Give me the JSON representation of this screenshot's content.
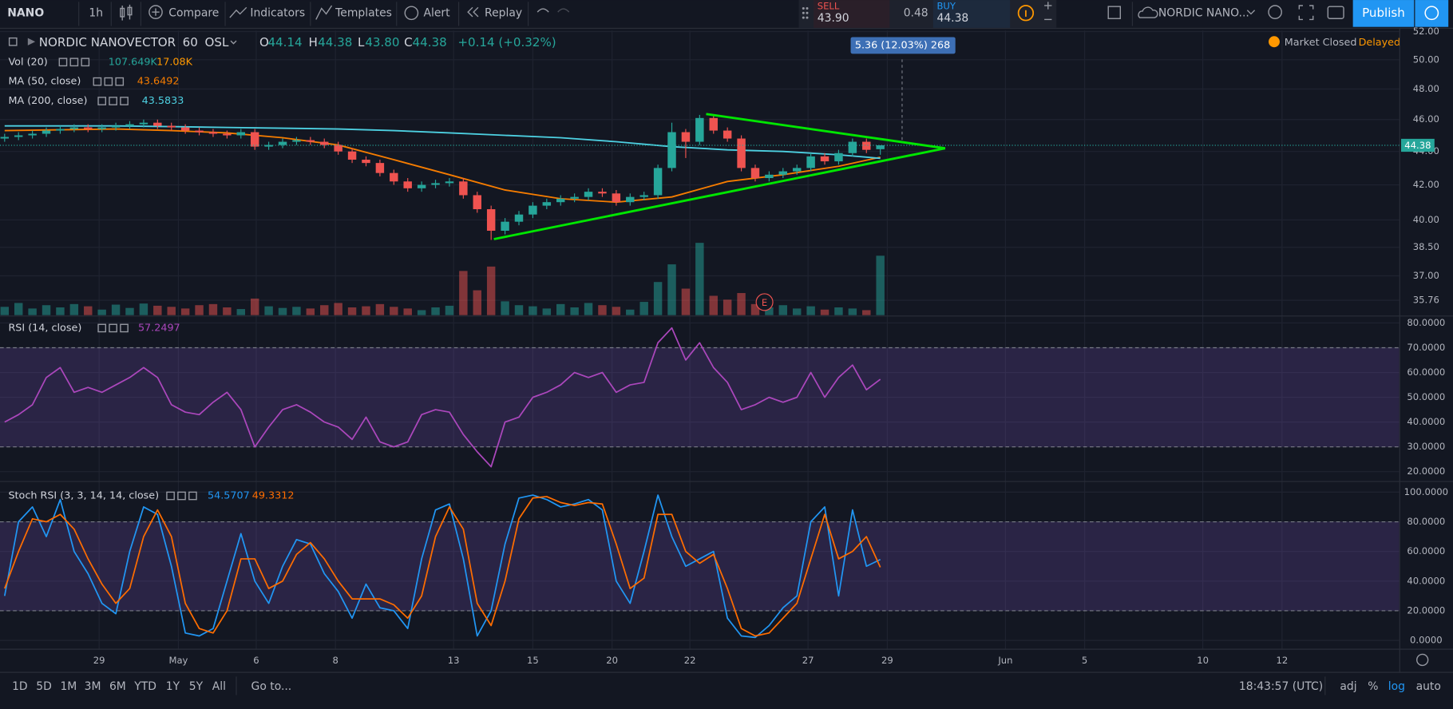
{
  "toolbar": {
    "symbol": "NANO",
    "interval": "1h",
    "compare": "Compare",
    "indicators": "Indicators",
    "templates": "Templates",
    "alert": "Alert",
    "replay": "Replay",
    "sell_label": "SELL",
    "sell_price": "43.90",
    "spread": "0.48",
    "buy_label": "BUY",
    "buy_price": "44.38",
    "layout_name": "NORDIC NANO...",
    "publish": "Publish"
  },
  "legend": {
    "symbol_name": "NORDIC NANOVECTOR",
    "interval": "60",
    "exchange": "OSL",
    "open_label": "O",
    "open": "44.14",
    "high_label": "H",
    "high": "44.38",
    "low_label": "L",
    "low": "43.80",
    "close_label": "C",
    "close": "44.38",
    "change": "+0.14 (+0.32%)"
  },
  "status": {
    "market": "Market Closed",
    "delayed": "Delayed"
  },
  "measure_label": "5.36 (12.03%) 268",
  "earnings_marker": "E",
  "bottom_bar": {
    "ranges": [
      "1D",
      "5D",
      "1M",
      "3M",
      "6M",
      "YTD",
      "1Y",
      "5Y",
      "All"
    ],
    "goto": "Go to...",
    "clock": "18:43:57 (UTC)",
    "adj": "adj",
    "percent": "%",
    "log": "log",
    "auto": "auto"
  },
  "chart_data": [
    {
      "type": "candlestick",
      "up_color": "#26a69a",
      "down_color": "#ef5350",
      "log_scale": true,
      "grid": true,
      "xlim": [
        -0.333,
        100.333
      ],
      "xticks": [
        {
          "value": 6.8,
          "label": "29"
        },
        {
          "value": 12.5,
          "label": "May"
        },
        {
          "value": 18.1,
          "label": "6"
        },
        {
          "value": 23.8,
          "label": "8"
        },
        {
          "value": 32.3,
          "label": "13"
        },
        {
          "value": 38,
          "label": "15"
        },
        {
          "value": 43.7,
          "label": "20"
        },
        {
          "value": 49.3,
          "label": "22"
        },
        {
          "value": 57.8,
          "label": "27"
        },
        {
          "value": 63.5,
          "label": "29"
        },
        {
          "value": 72,
          "label": "Jun"
        },
        {
          "value": 77.7,
          "label": "5"
        },
        {
          "value": 86.2,
          "label": "10"
        },
        {
          "value": 91.9,
          "label": "12"
        }
      ],
      "ylim": [
        35.03,
        52.07
      ],
      "yticks": [
        {
          "value": 52,
          "label": "52.00"
        },
        {
          "value": 50,
          "label": "50.00"
        },
        {
          "value": 48,
          "label": "48.00"
        },
        {
          "value": 46,
          "label": "46.00"
        },
        {
          "value": 44,
          "label": "44.00"
        },
        {
          "value": 42,
          "label": "42.00"
        },
        {
          "value": 40,
          "label": "40.00"
        },
        {
          "value": 38.5,
          "label": "38.50"
        },
        {
          "value": 37,
          "label": "37.00"
        },
        {
          "value": 35.76,
          "label": "35.76"
        }
      ],
      "candles": [
        [
          44.8,
          45.1,
          44.6,
          44.9
        ],
        [
          44.9,
          45.2,
          44.7,
          45.0
        ],
        [
          45.0,
          45.3,
          44.8,
          45.1
        ],
        [
          45.1,
          45.5,
          44.9,
          45.3
        ],
        [
          45.3,
          45.6,
          45.1,
          45.4
        ],
        [
          45.4,
          45.7,
          45.2,
          45.5
        ],
        [
          45.5,
          45.7,
          45.2,
          45.4
        ],
        [
          45.4,
          45.7,
          45.2,
          45.5
        ],
        [
          45.5,
          45.8,
          45.3,
          45.6
        ],
        [
          45.6,
          45.9,
          45.4,
          45.7
        ],
        [
          45.7,
          46.0,
          45.5,
          45.8
        ],
        [
          45.8,
          46.0,
          45.4,
          45.6
        ],
        [
          45.6,
          45.8,
          45.3,
          45.5
        ],
        [
          45.5,
          45.7,
          45.1,
          45.3
        ],
        [
          45.3,
          45.5,
          45.0,
          45.2
        ],
        [
          45.2,
          45.4,
          44.9,
          45.1
        ],
        [
          45.1,
          45.3,
          44.8,
          45.0
        ],
        [
          45.0,
          45.4,
          44.8,
          45.2
        ],
        [
          45.2,
          45.4,
          44.1,
          44.3
        ],
        [
          44.3,
          44.6,
          44.1,
          44.4
        ],
        [
          44.4,
          44.8,
          44.2,
          44.6
        ],
        [
          44.6,
          44.9,
          44.4,
          44.7
        ],
        [
          44.7,
          44.9,
          44.4,
          44.6
        ],
        [
          44.6,
          44.8,
          44.2,
          44.4
        ],
        [
          44.4,
          44.6,
          43.8,
          44.0
        ],
        [
          44.0,
          44.2,
          43.3,
          43.5
        ],
        [
          43.5,
          43.7,
          43.1,
          43.3
        ],
        [
          43.3,
          43.5,
          42.5,
          42.7
        ],
        [
          42.7,
          42.9,
          42.0,
          42.2
        ],
        [
          42.2,
          42.4,
          41.6,
          41.8
        ],
        [
          41.8,
          42.2,
          41.6,
          42.0
        ],
        [
          42.0,
          42.3,
          41.8,
          42.1
        ],
        [
          42.1,
          42.4,
          41.9,
          42.2
        ],
        [
          42.2,
          42.4,
          41.2,
          41.4
        ],
        [
          41.4,
          41.6,
          40.4,
          40.6
        ],
        [
          40.6,
          40.8,
          38.9,
          39.4
        ],
        [
          39.4,
          40.1,
          39.2,
          39.9
        ],
        [
          39.9,
          40.5,
          39.7,
          40.3
        ],
        [
          40.3,
          41.0,
          40.1,
          40.8
        ],
        [
          40.8,
          41.2,
          40.6,
          41.0
        ],
        [
          41.0,
          41.4,
          40.8,
          41.2
        ],
        [
          41.2,
          41.5,
          41.0,
          41.3
        ],
        [
          41.3,
          41.8,
          41.1,
          41.6
        ],
        [
          41.6,
          41.8,
          41.3,
          41.5
        ],
        [
          41.5,
          41.7,
          40.8,
          41.0
        ],
        [
          41.0,
          41.5,
          40.8,
          41.3
        ],
        [
          41.3,
          41.6,
          41.1,
          41.4
        ],
        [
          41.4,
          43.2,
          41.2,
          43.0
        ],
        [
          43.0,
          45.8,
          42.8,
          45.2
        ],
        [
          45.2,
          45.4,
          43.6,
          44.6
        ],
        [
          44.6,
          46.3,
          44.4,
          46.1
        ],
        [
          46.1,
          46.3,
          45.1,
          45.3
        ],
        [
          45.3,
          45.5,
          44.6,
          44.8
        ],
        [
          44.8,
          45.0,
          42.8,
          43.0
        ],
        [
          43.0,
          43.2,
          42.2,
          42.4
        ],
        [
          42.4,
          42.8,
          42.2,
          42.6
        ],
        [
          42.6,
          43.0,
          42.4,
          42.8
        ],
        [
          42.8,
          43.2,
          42.6,
          43.0
        ],
        [
          43.0,
          43.9,
          42.8,
          43.7
        ],
        [
          43.7,
          43.9,
          43.2,
          43.4
        ],
        [
          43.4,
          44.1,
          43.2,
          43.9
        ],
        [
          43.9,
          44.8,
          43.7,
          44.6
        ],
        [
          44.6,
          44.8,
          43.9,
          44.1
        ],
        [
          44.14,
          44.38,
          43.8,
          44.38
        ]
      ],
      "volume": {
        "name": "Vol (20)",
        "legend_value": "107.649K",
        "ma_label": "17.08K",
        "ma_color": "#ff9800",
        "color": "#26a69a",
        "values": [
          15000,
          22000,
          12000,
          18000,
          14000,
          20000,
          16000,
          10000,
          19000,
          13000,
          21000,
          17000,
          15000,
          12000,
          18000,
          20000,
          14000,
          11000,
          30000,
          16000,
          13000,
          15000,
          12000,
          18000,
          22000,
          14000,
          16000,
          20000,
          15000,
          12000,
          9000,
          14000,
          17000,
          80000,
          45000,
          88000,
          25000,
          18000,
          16000,
          12000,
          20000,
          14000,
          22000,
          18000,
          15000,
          10000,
          24000,
          60000,
          92000,
          48000,
          131000,
          35000,
          28000,
          40000,
          20000,
          14000,
          18000,
          12000,
          16000,
          10000,
          14000,
          12000,
          9000,
          107649
        ]
      },
      "series": [
        {
          "name": "MA (50, close)",
          "color": "#f57c00",
          "x": [
            0,
            4,
            8,
            12,
            16,
            20,
            24,
            28,
            32,
            36,
            40,
            44,
            48,
            52,
            56,
            60,
            63
          ],
          "values": [
            45.3,
            45.35,
            45.4,
            45.3,
            45.15,
            44.85,
            44.4,
            43.5,
            42.6,
            41.7,
            41.2,
            41.0,
            41.3,
            42.2,
            42.6,
            43.1,
            43.6492
          ]
        },
        {
          "name": "MA (200, close)",
          "color": "#4dd0e1",
          "x": [
            0,
            4,
            8,
            12,
            16,
            20,
            24,
            28,
            32,
            36,
            40,
            44,
            48,
            52,
            56,
            60,
            63
          ],
          "values": [
            45.6,
            45.6,
            45.6,
            45.55,
            45.5,
            45.45,
            45.4,
            45.3,
            45.15,
            45.0,
            44.85,
            44.6,
            44.3,
            44.1,
            44.0,
            43.8,
            43.5833
          ]
        }
      ]
    },
    {
      "type": "line",
      "title": "RSI (14, close)",
      "grid": true,
      "band": [
        30,
        70
      ],
      "band_color": "#7e57c2",
      "ylim": [
        16.6,
        82.4
      ],
      "yticks": [
        {
          "value": 80,
          "label": "80.0000"
        },
        {
          "value": 70,
          "label": "70.0000"
        },
        {
          "value": 60,
          "label": "60.0000"
        },
        {
          "value": 50,
          "label": "50.0000"
        },
        {
          "value": 40,
          "label": "40.0000"
        },
        {
          "value": 30,
          "label": "30.0000"
        },
        {
          "value": 20,
          "label": "20.0000"
        }
      ],
      "series": [
        {
          "color": "#ab47bc",
          "values": [
            40,
            43,
            47,
            58,
            62,
            52,
            54,
            52,
            55,
            58,
            62,
            58,
            47,
            44,
            43,
            48,
            52,
            45,
            30,
            38,
            45,
            47,
            44,
            40,
            38,
            33,
            42,
            32,
            30,
            32,
            43,
            45,
            44,
            35,
            28,
            22,
            40,
            42,
            50,
            52,
            55,
            60,
            58,
            60,
            52,
            55,
            56,
            72,
            78,
            65,
            72,
            62,
            56,
            45,
            47,
            50,
            48,
            50,
            60,
            50,
            58,
            63,
            53,
            57.2497
          ]
        }
      ]
    },
    {
      "type": "line",
      "title": "Stoch RSI (3, 3, 14, 14, close)",
      "grid": true,
      "band": [
        20,
        80
      ],
      "band_color": "#7e57c2",
      "ylim": [
        -5.6,
        106.25
      ],
      "yticks": [
        {
          "value": 100,
          "label": "100.0000"
        },
        {
          "value": 80,
          "label": "80.0000"
        },
        {
          "value": 60,
          "label": "60.0000"
        },
        {
          "value": 40,
          "label": "40.0000"
        },
        {
          "value": 20,
          "label": "20.0000"
        },
        {
          "value": 0,
          "label": "0.0000"
        }
      ],
      "series": [
        {
          "color": "#2196f3",
          "values": [
            30,
            80,
            90,
            70,
            95,
            60,
            45,
            25,
            18,
            60,
            90,
            85,
            50,
            5,
            3,
            8,
            40,
            72,
            40,
            25,
            50,
            68,
            65,
            45,
            33,
            15,
            38,
            22,
            20,
            8,
            55,
            88,
            92,
            55,
            3,
            20,
            65,
            96,
            98,
            95,
            90,
            92,
            95,
            88,
            40,
            25,
            60,
            98,
            70,
            50,
            55,
            60,
            15,
            3,
            2,
            10,
            22,
            30,
            80,
            90,
            30,
            88,
            50,
            54.5707
          ]
        },
        {
          "color": "#ff6d00",
          "values": [
            35,
            60,
            82,
            80,
            85,
            75,
            55,
            38,
            25,
            35,
            70,
            88,
            70,
            25,
            8,
            5,
            20,
            55,
            55,
            35,
            40,
            58,
            66,
            55,
            40,
            28,
            28,
            28,
            24,
            15,
            30,
            70,
            90,
            75,
            25,
            10,
            40,
            82,
            96,
            97,
            93,
            91,
            93,
            92,
            65,
            35,
            42,
            85,
            85,
            60,
            52,
            58,
            35,
            8,
            3,
            5,
            15,
            25,
            55,
            85,
            55,
            60,
            70,
            49.3312
          ]
        }
      ]
    }
  ]
}
